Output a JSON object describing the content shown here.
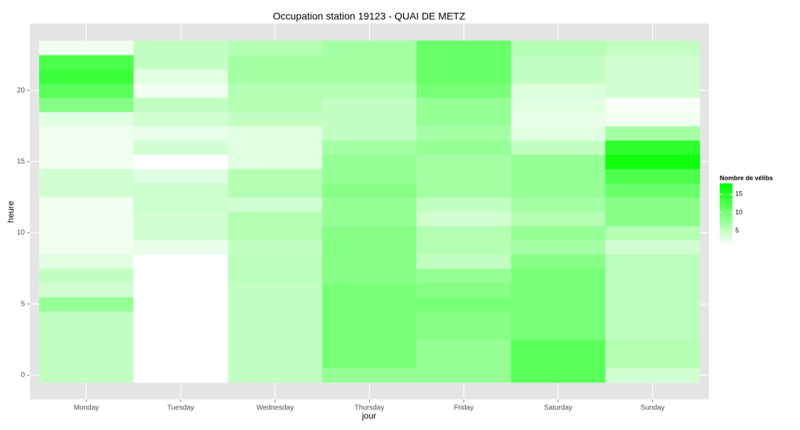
{
  "chart_data": {
    "type": "heatmap",
    "title": "Occupation station 19123 - QUAI DE METZ",
    "x_label": "jour",
    "y_label": "heure",
    "categories": [
      "Monday",
      "Tuesday",
      "Wednesday",
      "Thursday",
      "Friday",
      "Saturday",
      "Sunday"
    ],
    "y": [
      0,
      1,
      2,
      3,
      4,
      5,
      6,
      7,
      8,
      9,
      10,
      11,
      12,
      13,
      14,
      15,
      16,
      17,
      18,
      19,
      20,
      21,
      22,
      23
    ],
    "values": [
      [
        5,
        5,
        5,
        5,
        5,
        8,
        4,
        5,
        3,
        2,
        2,
        2,
        2,
        4,
        4,
        2,
        2,
        2,
        3,
        9,
        12,
        14,
        13,
        2
      ],
      [
        1,
        1,
        1,
        1,
        1,
        1,
        1,
        1,
        1,
        2.5,
        4,
        4,
        4.5,
        4.5,
        3,
        1,
        4,
        2.5,
        4,
        5,
        2,
        3,
        5,
        5
      ],
      [
        5,
        5,
        5,
        5,
        5,
        5,
        5,
        5.5,
        5.5,
        5,
        6,
        6,
        4,
        6,
        6,
        3,
        3,
        3,
        5,
        6,
        6,
        7,
        7,
        6
      ],
      [
        8,
        10,
        10,
        10,
        10,
        10,
        10,
        9,
        9,
        9,
        9,
        8,
        8,
        9,
        8,
        8,
        7,
        5,
        5,
        5,
        6,
        7,
        7,
        7
      ],
      [
        8,
        8,
        8,
        9,
        9,
        10,
        9,
        8,
        5,
        6,
        6,
        4,
        5,
        7,
        7,
        7,
        8,
        7,
        8,
        8,
        10,
        11,
        11,
        11
      ],
      [
        12,
        12,
        12,
        10,
        10,
        10,
        10,
        10,
        9,
        7,
        8,
        6,
        7,
        8,
        8,
        8,
        5,
        3,
        2.5,
        3,
        3.5,
        5,
        5,
        6
      ],
      [
        4,
        6,
        6,
        5.5,
        5.5,
        5.5,
        5.5,
        5.5,
        5.5,
        4,
        6,
        9,
        9,
        11,
        13,
        17,
        15,
        7,
        2,
        1.5,
        4,
        4,
        4,
        5
      ]
    ],
    "ylim": [
      -1.7,
      24.7
    ],
    "yticks": [
      0,
      5,
      10,
      15,
      20
    ],
    "grid": true,
    "legend_title": "Nombre de vélibs",
    "clim": [
      1,
      18
    ],
    "cticks": [
      5,
      10,
      15
    ],
    "color_low": "#ffffff",
    "color_high": "#00ff00"
  }
}
